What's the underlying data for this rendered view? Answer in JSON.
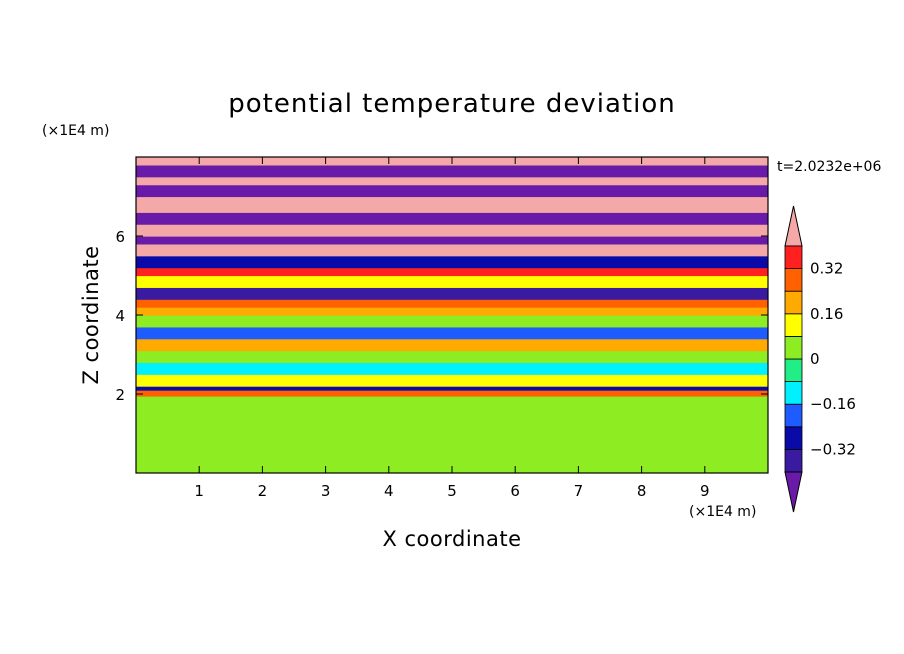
{
  "chart_data": {
    "type": "heatmap",
    "title": "potential temperature deviation",
    "xlabel": "X coordinate",
    "ylabel": "Z coordinate",
    "x_unit": "(×1E4 m)",
    "z_unit": "(×1E4 m)",
    "time_label": "t=2.0232e+06",
    "xlim": [
      0,
      10
    ],
    "zlim": [
      0,
      8
    ],
    "x_ticks": [
      "1",
      "2",
      "3",
      "4",
      "5",
      "6",
      "7",
      "8",
      "9"
    ],
    "z_ticks": [
      "2",
      "4",
      "6"
    ],
    "colorbar": {
      "levels": [
        -0.4,
        -0.32,
        -0.24,
        -0.16,
        -0.08,
        0,
        0.08,
        0.16,
        0.24,
        0.32,
        0.4
      ],
      "labels": [
        "0.32",
        "0.16",
        "0",
        "−0.16",
        "−0.32"
      ],
      "label_values": [
        0.32,
        0.16,
        0,
        -0.16,
        -0.32
      ],
      "colors": [
        "#6a1aa8",
        "#3a1aa0",
        "#0a0aa8",
        "#1e5cff",
        "#00f0ff",
        "#22ee88",
        "#8eec22",
        "#ffff00",
        "#ffaa00",
        "#ff6000",
        "#ff2020",
        "#f4a8a8"
      ],
      "extend": "both"
    },
    "bands": [
      {
        "z": [
          0.0,
          0.25
        ],
        "value": 0.04
      },
      {
        "z": [
          0.25,
          1.95
        ],
        "value": 0.06
      },
      {
        "z": [
          1.95,
          2.1
        ],
        "value": 0.25
      },
      {
        "z": [
          2.1,
          2.2
        ],
        "value": -0.26
      },
      {
        "z": [
          2.2,
          2.5
        ],
        "value": 0.12
      },
      {
        "z": [
          2.5,
          2.8
        ],
        "value": -0.1
      },
      {
        "z": [
          2.8,
          3.1
        ],
        "value": 0.05
      },
      {
        "z": [
          3.1,
          3.4
        ],
        "value": 0.2
      },
      {
        "z": [
          3.4,
          3.7
        ],
        "value": -0.2
      },
      {
        "z": [
          3.7,
          4.0
        ],
        "value": 0.06
      },
      {
        "z": [
          4.0,
          4.2
        ],
        "value": 0.2
      },
      {
        "z": [
          4.2,
          4.4
        ],
        "value": 0.3
      },
      {
        "z": [
          4.4,
          4.7
        ],
        "value": -0.35
      },
      {
        "z": [
          4.7,
          5.0
        ],
        "value": 0.15
      },
      {
        "z": [
          5.0,
          5.2
        ],
        "value": 0.35
      },
      {
        "z": [
          5.2,
          5.5
        ],
        "value": -0.3
      },
      {
        "z": [
          5.5,
          5.8
        ],
        "value": 0.45
      },
      {
        "z": [
          5.8,
          6.0
        ],
        "value": -0.45
      },
      {
        "z": [
          6.0,
          6.3
        ],
        "value": 0.45
      },
      {
        "z": [
          6.3,
          6.6
        ],
        "value": -0.45
      },
      {
        "z": [
          6.6,
          7.0
        ],
        "value": 0.45
      },
      {
        "z": [
          7.0,
          7.3
        ],
        "value": -0.45
      },
      {
        "z": [
          7.3,
          7.5
        ],
        "value": 0.45
      },
      {
        "z": [
          7.5,
          7.8
        ],
        "value": -0.45
      },
      {
        "z": [
          7.8,
          8.0
        ],
        "value": 0.45
      }
    ]
  }
}
